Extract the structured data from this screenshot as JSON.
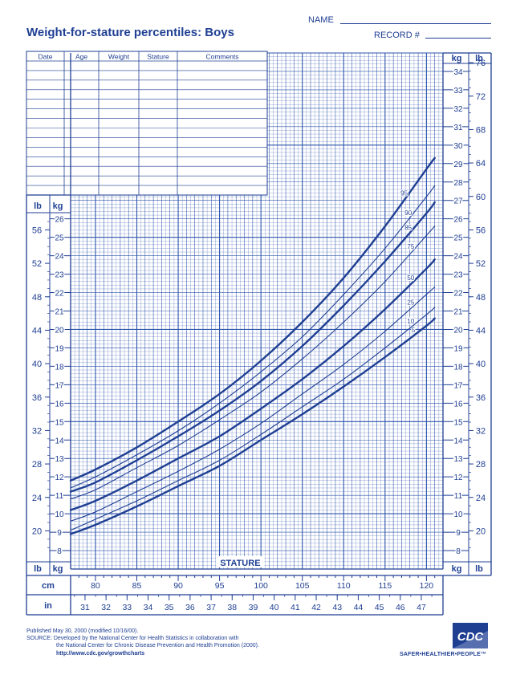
{
  "header": {
    "title": "Weight-for-stature percentiles: Boys",
    "name_label": "NAME",
    "record_label": "RECORD #"
  },
  "record_table": {
    "columns": [
      "Date",
      "Age",
      "Weight",
      "Stature",
      "Comments"
    ],
    "rows": 14
  },
  "footer": {
    "published": "Published May 30, 2000 (modified 10/16/00).",
    "source_line1": "SOURCE: Developed by the National Center for Health Statistics in collaboration with",
    "source_line2": "the National Center for Chronic Disease Prevention and Health Promotion (2000).",
    "url": "http://www.cdc.gov/growthcharts",
    "logo_text": "CDC",
    "tagline": "SAFER•HEALTHIER•PEOPLE™"
  },
  "colors": {
    "ink": "#1f3f93",
    "grid": "#2e54ad",
    "paper": "#ffffff"
  },
  "chart_data": {
    "type": "line",
    "title": "Weight-for-stature percentiles: Boys",
    "xlabel": "STATURE",
    "ylabel": "kg",
    "xlabel_units": [
      "cm",
      "in"
    ],
    "ylabel_units": [
      "kg",
      "lb"
    ],
    "xlim": [
      77,
      122
    ],
    "ylim": [
      7,
      35
    ],
    "x_ticks_cm": [
      80,
      85,
      90,
      95,
      100,
      105,
      110,
      115,
      120
    ],
    "x_ticks_in": [
      31,
      32,
      33,
      34,
      35,
      36,
      37,
      38,
      39,
      40,
      41,
      42,
      43,
      44,
      45,
      46,
      47
    ],
    "y_ticks_kg_right": [
      8,
      9,
      10,
      11,
      12,
      13,
      14,
      15,
      16,
      17,
      18,
      19,
      20,
      21,
      22,
      23,
      24,
      25,
      26,
      27,
      28,
      29,
      30,
      31,
      32,
      33,
      34
    ],
    "y_ticks_kg_left": [
      8,
      9,
      10,
      11,
      12,
      13,
      14,
      15,
      16,
      17,
      18,
      19,
      20,
      21,
      22,
      23,
      24,
      25,
      26
    ],
    "y_ticks_lb_right": [
      20,
      24,
      28,
      32,
      36,
      40,
      44,
      48,
      52,
      56,
      60,
      64,
      68,
      72,
      76
    ],
    "y_ticks_lb_left": [
      20,
      24,
      28,
      32,
      36,
      40,
      44,
      48,
      52,
      56
    ],
    "unit_labels": {
      "kg": "kg",
      "lb": "lb",
      "cm": "cm",
      "in": "in"
    },
    "grid": true,
    "x": [
      77,
      80,
      85,
      90,
      95,
      100,
      105,
      110,
      115,
      120,
      121
    ],
    "series": [
      {
        "name": "5",
        "values": [
          8.9,
          9.4,
          10.4,
          11.5,
          12.6,
          14.0,
          15.4,
          16.9,
          18.5,
          20.2,
          20.6
        ]
      },
      {
        "name": "10",
        "values": [
          9.1,
          9.7,
          10.7,
          11.8,
          12.9,
          14.3,
          15.8,
          17.3,
          19.0,
          20.8,
          21.2
        ]
      },
      {
        "name": "25",
        "values": [
          9.6,
          10.1,
          11.2,
          12.3,
          13.5,
          14.9,
          16.5,
          18.1,
          19.9,
          21.9,
          22.3
        ]
      },
      {
        "name": "50",
        "values": [
          10.2,
          10.7,
          11.8,
          13.0,
          14.2,
          15.7,
          17.3,
          19.1,
          21.1,
          23.3,
          23.8
        ]
      },
      {
        "name": "75",
        "values": [
          10.8,
          11.3,
          12.5,
          13.7,
          15.1,
          16.6,
          18.4,
          20.4,
          22.6,
          25.1,
          25.6
        ]
      },
      {
        "name": "85",
        "values": [
          11.2,
          11.7,
          12.9,
          14.2,
          15.6,
          17.2,
          19.1,
          21.3,
          23.7,
          26.3,
          26.9
        ]
      },
      {
        "name": "90",
        "values": [
          11.4,
          12.0,
          13.2,
          14.5,
          16.0,
          17.7,
          19.6,
          21.9,
          24.4,
          27.2,
          27.8
        ]
      },
      {
        "name": "95",
        "values": [
          11.8,
          12.4,
          13.6,
          15.0,
          16.5,
          18.3,
          20.4,
          22.8,
          25.6,
          28.7,
          29.3
        ]
      }
    ]
  }
}
